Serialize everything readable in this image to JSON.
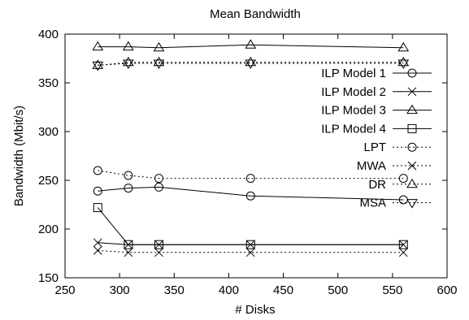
{
  "chart_data": {
    "type": "line",
    "title": "Mean Bandwidth",
    "xlabel": "# Disks",
    "ylabel": "Bandwidth (Mbit/s)",
    "xlim": [
      250,
      600
    ],
    "ylim": [
      150,
      400
    ],
    "xticks": [
      250,
      300,
      350,
      400,
      450,
      500,
      550,
      600
    ],
    "yticks": [
      150,
      200,
      250,
      300,
      350,
      400
    ],
    "grid": false,
    "legend_position": "right",
    "series": [
      {
        "name": "ILP Model 1",
        "marker": "circle",
        "dashed": false,
        "x": [
          280,
          308,
          336,
          420,
          560
        ],
        "y": [
          239,
          242,
          243,
          234,
          230
        ]
      },
      {
        "name": "ILP Model 2",
        "marker": "x",
        "dashed": false,
        "x": [
          280,
          308,
          336,
          420,
          560
        ],
        "y": [
          186,
          184,
          184,
          184,
          184
        ]
      },
      {
        "name": "ILP Model 3",
        "marker": "triangle-up",
        "dashed": false,
        "x": [
          280,
          308,
          336,
          420,
          560
        ],
        "y": [
          387,
          387,
          386,
          389,
          386
        ]
      },
      {
        "name": "ILP Model 4",
        "marker": "square",
        "dashed": false,
        "x": [
          280,
          308,
          336,
          420,
          560
        ],
        "y": [
          222,
          184,
          184,
          184,
          184
        ]
      },
      {
        "name": "LPT",
        "marker": "circle",
        "dashed": true,
        "x": [
          280,
          308,
          336,
          420,
          560
        ],
        "y": [
          260,
          255,
          252,
          252,
          252
        ]
      },
      {
        "name": "MWA",
        "marker": "x",
        "dashed": true,
        "x": [
          280,
          308,
          336,
          420,
          560
        ],
        "y": [
          178,
          176,
          176,
          176,
          176
        ]
      },
      {
        "name": "DR",
        "marker": "triangle-up",
        "dashed": true,
        "x": [
          280,
          308,
          336,
          420,
          560
        ],
        "y": [
          368,
          371,
          371,
          371,
          371
        ]
      },
      {
        "name": "MSA",
        "marker": "triangle-down",
        "dashed": true,
        "x": [
          280,
          308,
          336,
          420,
          560
        ],
        "y": [
          368,
          370,
          370,
          370,
          370
        ]
      }
    ]
  }
}
